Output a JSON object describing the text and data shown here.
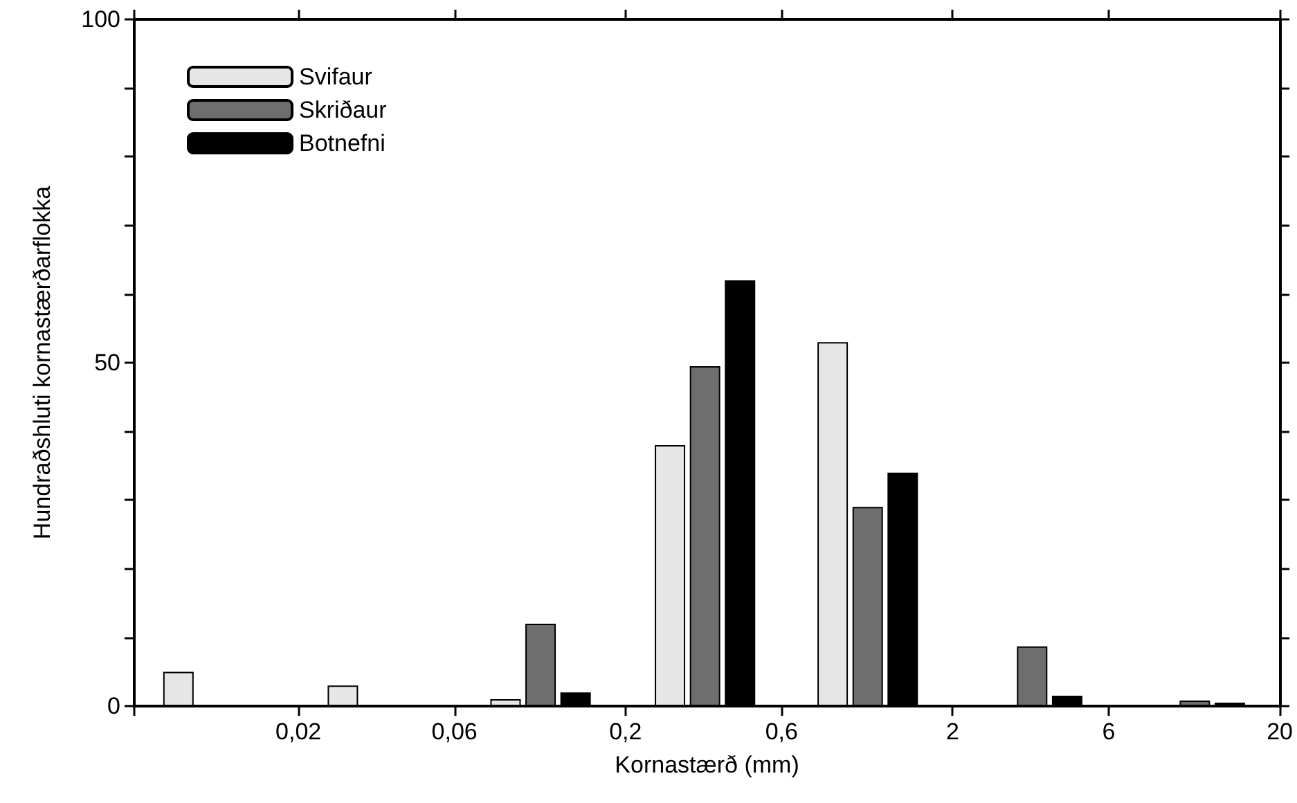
{
  "chart_data": {
    "type": "bar",
    "xlabel": "Kornastærð (mm)",
    "ylabel": "Hundraðshluti kornastærðarflokka",
    "x": [
      0.011,
      0.035,
      0.11,
      0.35,
      1.1,
      3.5,
      11
    ],
    "xlim": [
      0.0063,
      20
    ],
    "log": "x",
    "xticks": [
      {
        "value": 0.0063,
        "label": null
      },
      {
        "value": 0.02,
        "label": "0,02"
      },
      {
        "value": 0.06,
        "label": "0,06"
      },
      {
        "value": 0.2,
        "label": "0,2"
      },
      {
        "value": 0.6,
        "label": "0,6"
      },
      {
        "value": 2,
        "label": "2"
      },
      {
        "value": 6,
        "label": "6"
      },
      {
        "value": 20,
        "label": "20"
      }
    ],
    "ylim": [
      0,
      100
    ],
    "yticks": [
      0,
      {
        "value": 10,
        "label": null
      },
      {
        "value": 20,
        "label": null
      },
      {
        "value": 30,
        "label": null
      },
      {
        "value": 40,
        "label": null
      },
      50,
      {
        "value": 60,
        "label": null
      },
      {
        "value": 70,
        "label": null
      },
      {
        "value": 80,
        "label": null
      },
      {
        "value": 90,
        "label": null
      },
      100
    ],
    "series": [
      {
        "name": "Svifaur",
        "color": "#e6e6e6",
        "values": [
          5,
          3,
          1,
          38,
          53,
          null,
          null
        ]
      },
      {
        "name": "Skriðaur",
        "color": "#6e6e6e",
        "values": [
          null,
          null,
          12,
          49.5,
          29,
          8.7,
          0.8
        ]
      },
      {
        "name": "Botnefni",
        "color": "#000000",
        "values": [
          null,
          null,
          2,
          62,
          34,
          1.5,
          0.5
        ]
      }
    ],
    "legend": "top left",
    "grid": false
  }
}
